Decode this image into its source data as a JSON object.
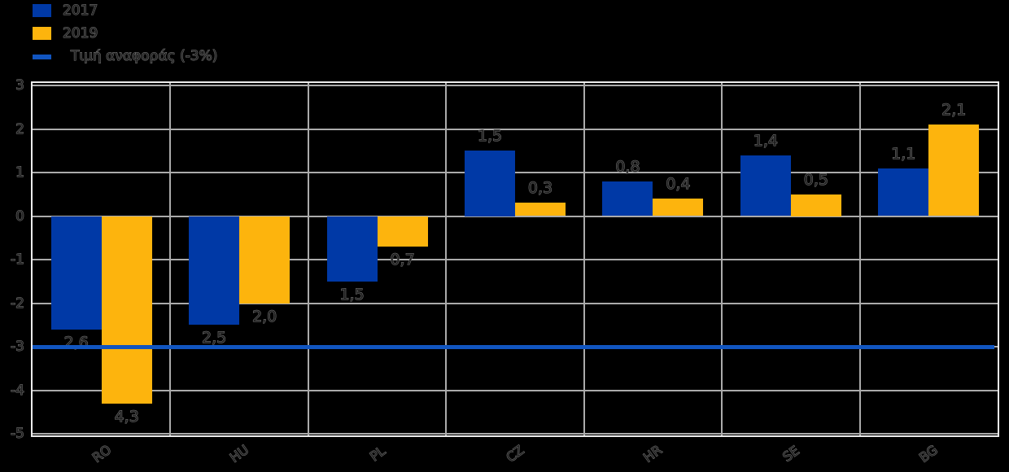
{
  "legend": {
    "items": [
      {
        "label": "2017",
        "swatch": "square",
        "color": "#0039A6"
      },
      {
        "label": "2019",
        "swatch": "square",
        "color": "#FDB40D"
      },
      {
        "label": "Τιμή αναφοράς (-3%)",
        "swatch": "line",
        "color": "#1155C0"
      }
    ]
  },
  "chart_data": {
    "type": "bar",
    "categories": [
      "RO",
      "HU",
      "PL",
      "CZ",
      "HR",
      "SE",
      "BG"
    ],
    "series": [
      {
        "name": "2017",
        "color": "#0039A6",
        "values": [
          -2.6,
          -2.5,
          -1.5,
          1.5,
          0.8,
          1.4,
          1.1
        ],
        "labels": [
          "2,6",
          "2,5",
          "1,5",
          "1,5",
          "0,8",
          "1,4",
          "1,1"
        ]
      },
      {
        "name": "2019",
        "color": "#FDB40D",
        "values": [
          -4.3,
          -2.0,
          -0.7,
          0.3,
          0.4,
          0.5,
          2.1
        ],
        "labels": [
          "4,3",
          "2,0",
          "0,7",
          "0,3",
          "0,4",
          "0,5",
          "2,1"
        ]
      }
    ],
    "reference_line": {
      "value": -3,
      "label": "Τιμή αναφοράς (-3%)",
      "color": "#1155C0"
    },
    "y_ticks": [
      3,
      2,
      1,
      0,
      -1,
      -2,
      -3,
      -4,
      -5
    ],
    "ylim": [
      -5.1,
      3.1
    ],
    "grid": true,
    "legend_position": "top-left"
  },
  "colors": {
    "background": "#000000",
    "gridline": "#ababab",
    "plot_border": "#ececec",
    "bar_2017": "#0039A6",
    "bar_2019": "#FDB40D",
    "reference_line": "#1155C0",
    "text": "#1f1f1f"
  }
}
